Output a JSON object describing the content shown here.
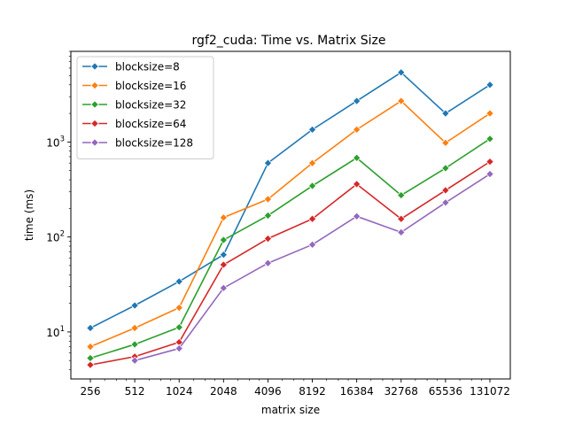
{
  "chart_data": {
    "type": "line",
    "title": "rgf2_cuda: Time vs. Matrix Size",
    "xlabel": "matrix size",
    "ylabel": "time (ms)",
    "xscale": "log2",
    "yscale": "log10",
    "ylim": [
      3.2,
      9000
    ],
    "x": [
      256,
      512,
      1024,
      2048,
      4096,
      8192,
      16384,
      32768,
      65536,
      131072
    ],
    "x_tick_labels": [
      "256",
      "512",
      "1024",
      "2048",
      "4096",
      "8192",
      "16384",
      "32768",
      "65536",
      "131072"
    ],
    "y_tick_labels": [
      {
        "base": "10",
        "exp": "1",
        "value": 10
      },
      {
        "base": "10",
        "exp": "2",
        "value": 100
      },
      {
        "base": "10",
        "exp": "3",
        "value": 1000
      }
    ],
    "legend_position": "upper-left",
    "grid": false,
    "series": [
      {
        "name": "blocksize=8",
        "color": "#1f77b4",
        "values": [
          11,
          19,
          34,
          65,
          600,
          1350,
          2700,
          5400,
          2000,
          4000
        ]
      },
      {
        "name": "blocksize=16",
        "color": "#ff7f0e",
        "values": [
          7,
          11,
          18,
          160,
          250,
          600,
          1350,
          2700,
          980,
          2000
        ]
      },
      {
        "name": "blocksize=32",
        "color": "#2ca02c",
        "values": [
          5.3,
          7.4,
          11.2,
          93,
          168,
          345,
          680,
          275,
          530,
          1080
        ]
      },
      {
        "name": "blocksize=64",
        "color": "#d62728",
        "values": [
          4.5,
          5.5,
          7.8,
          51,
          96,
          155,
          360,
          155,
          310,
          620
        ]
      },
      {
        "name": "blocksize=128",
        "color": "#9467bd",
        "values": [
          null,
          5.0,
          6.7,
          29,
          53,
          83,
          165,
          112,
          230,
          460
        ]
      }
    ]
  }
}
